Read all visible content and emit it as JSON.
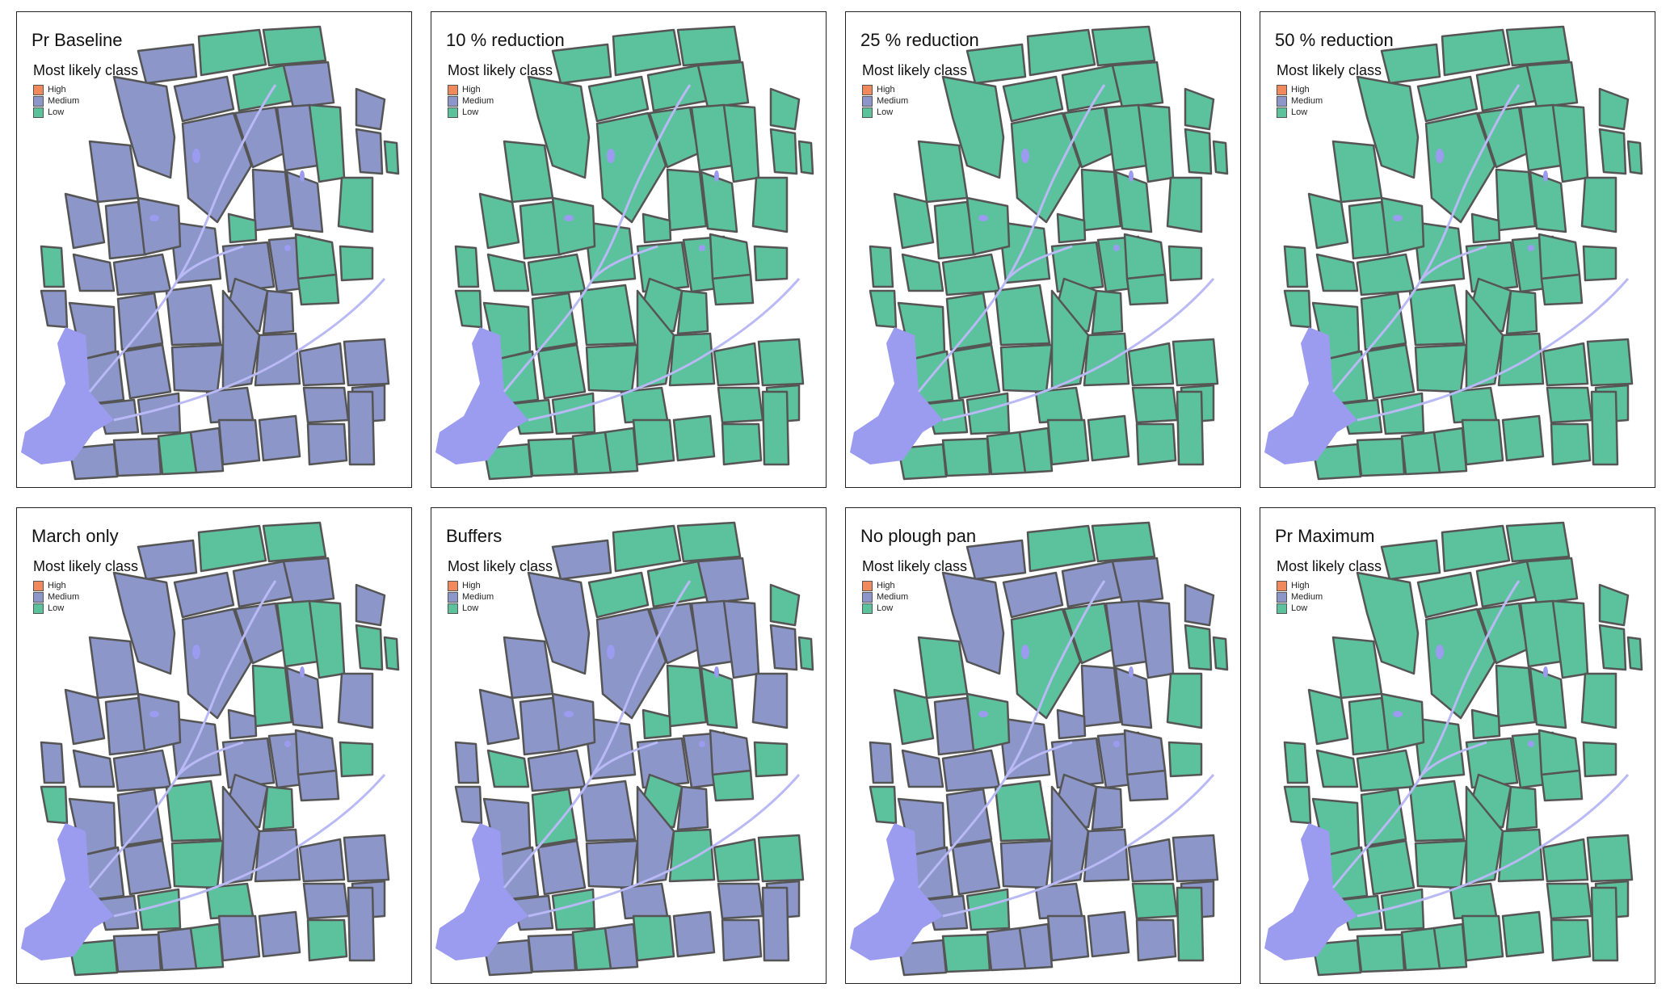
{
  "legend": {
    "title": "Most likely class",
    "classes": [
      {
        "label": "High",
        "color": "#f08a5d"
      },
      {
        "label": "Medium",
        "color": "#8c96c9"
      },
      {
        "label": "Low",
        "color": "#5cc29e"
      }
    ]
  },
  "colors": {
    "water": "#9b9bf0",
    "stream": "#b9b9f5",
    "field_border": "#555555"
  },
  "panels": [
    {
      "title": "Pr Baseline",
      "dominant_class": "Medium"
    },
    {
      "title": "10 % reduction",
      "dominant_class": "Low"
    },
    {
      "title": "25 % reduction",
      "dominant_class": "Low"
    },
    {
      "title": "50 % reduction",
      "dominant_class": "Low"
    },
    {
      "title": "March only",
      "dominant_class": "Medium"
    },
    {
      "title": "Buffers",
      "dominant_class": "Medium"
    },
    {
      "title": "No plough pan",
      "dominant_class": "Medium"
    },
    {
      "title": "Pr Maximum",
      "dominant_class": "Low"
    }
  ]
}
